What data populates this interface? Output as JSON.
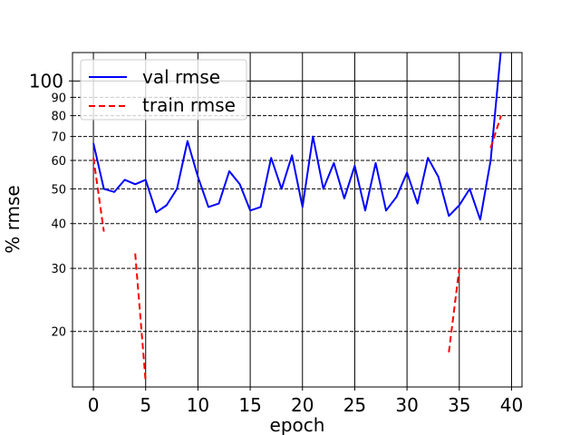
{
  "chart_data": {
    "type": "line",
    "title": "",
    "xlabel": "epoch",
    "ylabel": "% rmse",
    "yscale": "log",
    "xlim": [
      -2,
      41
    ],
    "ylim": [
      14,
      120
    ],
    "x_ticks": [
      0,
      5,
      10,
      15,
      20,
      25,
      30,
      35,
      40
    ],
    "y_major_ticks": [
      100
    ],
    "y_minor_ticks": [
      20,
      30,
      40,
      50,
      60,
      70,
      80,
      90
    ],
    "grid": true,
    "legend_position": "top-left",
    "series": [
      {
        "name": "val rmse",
        "color": "#0000ff",
        "style": "solid",
        "x": [
          0,
          1,
          2,
          3,
          4,
          5,
          6,
          7,
          8,
          9,
          10,
          11,
          12,
          13,
          14,
          15,
          16,
          17,
          18,
          19,
          20,
          21,
          22,
          23,
          24,
          25,
          26,
          27,
          28,
          29,
          30,
          31,
          32,
          33,
          34,
          35,
          36,
          37,
          38,
          39
        ],
        "values": [
          67,
          50,
          49,
          53,
          51.5,
          53,
          43,
          45,
          50,
          68,
          54,
          44.5,
          45.5,
          56,
          51.5,
          43.5,
          44.5,
          61,
          50,
          62,
          44.5,
          70,
          50,
          59,
          47,
          58,
          43.5,
          59,
          43.5,
          47.5,
          55.5,
          45.5,
          61,
          54,
          42,
          45,
          50,
          41,
          60,
          123
        ]
      },
      {
        "name": "train rmse",
        "color": "#ff0000",
        "style": "dashed",
        "segments": [
          {
            "x": [
              0,
              1
            ],
            "values": [
              61,
              38
            ]
          },
          {
            "x": [
              4,
              5
            ],
            "values": [
              33,
              14.5
            ]
          },
          {
            "x": [
              34,
              35
            ],
            "values": [
              17.5,
              30
            ]
          },
          {
            "x": [
              38,
              39
            ],
            "values": [
              65,
              80
            ]
          }
        ]
      }
    ]
  }
}
